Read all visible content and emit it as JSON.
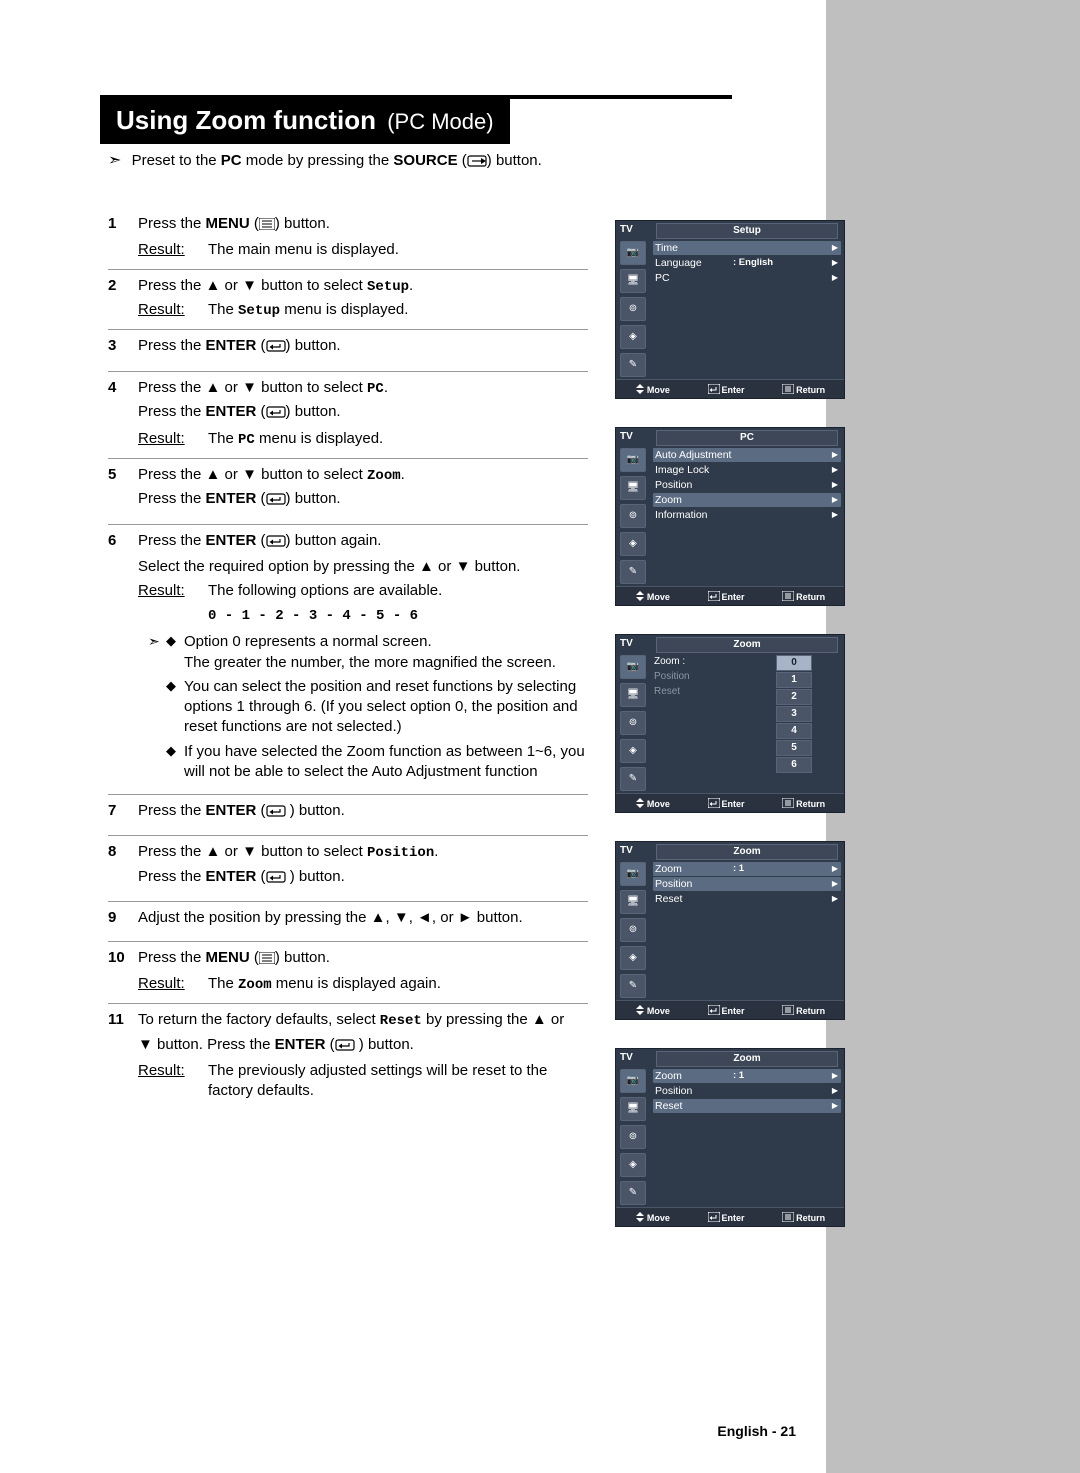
{
  "page": {
    "title_main": "Using Zoom function",
    "title_sub": "(PC Mode)",
    "footer": "English - 21"
  },
  "preset": {
    "arrow": "➣",
    "pre": "Preset to the ",
    "bold1": "PC",
    "mid": " mode by pressing the ",
    "bold2": "SOURCE",
    "post": " button."
  },
  "result_label": "Result:",
  "steps": [
    {
      "n": "1",
      "lines": [
        {
          "t": "plain",
          "segs": [
            {
              "txt": "Press the "
            },
            {
              "b": "MENU"
            },
            {
              "txt": " ("
            },
            {
              "icon": "menu"
            },
            {
              "txt": ") button."
            }
          ]
        }
      ],
      "result": "The main menu is displayed."
    },
    {
      "n": "2",
      "lines": [
        {
          "t": "plain",
          "segs": [
            {
              "txt": "Press the "
            },
            {
              "tri": "▲"
            },
            {
              "txt": " or "
            },
            {
              "tri": "▼"
            },
            {
              "txt": " button to select "
            },
            {
              "mono": "Setup"
            },
            {
              "txt": "."
            }
          ]
        }
      ],
      "result_rich": [
        {
          "txt": "The "
        },
        {
          "mono": "Setup"
        },
        {
          "txt": " menu is displayed."
        }
      ]
    },
    {
      "n": "3",
      "lines": [
        {
          "t": "plain",
          "segs": [
            {
              "txt": "Press the "
            },
            {
              "b": "ENTER"
            },
            {
              "txt": " ("
            },
            {
              "icon": "enter"
            },
            {
              "txt": ") button."
            }
          ]
        }
      ]
    },
    {
      "n": "4",
      "lines": [
        {
          "t": "plain",
          "segs": [
            {
              "txt": "Press the "
            },
            {
              "tri": "▲"
            },
            {
              "txt": " or "
            },
            {
              "tri": "▼"
            },
            {
              "txt": " button to select "
            },
            {
              "mono": "PC"
            },
            {
              "txt": "."
            }
          ]
        },
        {
          "t": "plain",
          "segs": [
            {
              "txt": "Press the "
            },
            {
              "b": "ENTER"
            },
            {
              "txt": " ("
            },
            {
              "icon": "enter"
            },
            {
              "txt": ") button."
            }
          ]
        }
      ],
      "result_rich": [
        {
          "txt": "The "
        },
        {
          "mono": "PC"
        },
        {
          "txt": "  menu is displayed."
        }
      ]
    },
    {
      "n": "5",
      "lines": [
        {
          "t": "plain",
          "segs": [
            {
              "txt": "Press the "
            },
            {
              "tri": "▲"
            },
            {
              "txt": " or "
            },
            {
              "tri": "▼"
            },
            {
              "txt": " button to select "
            },
            {
              "mono": "Zoom"
            },
            {
              "txt": "."
            }
          ]
        },
        {
          "t": "plain",
          "segs": [
            {
              "txt": "Press the "
            },
            {
              "b": "ENTER"
            },
            {
              "txt": " ("
            },
            {
              "icon": "enter"
            },
            {
              "txt": ") button."
            }
          ]
        }
      ]
    },
    {
      "n": "6",
      "lines": [
        {
          "t": "plain",
          "segs": [
            {
              "txt": "Press the "
            },
            {
              "b": "ENTER"
            },
            {
              "txt": " ("
            },
            {
              "icon": "enter"
            },
            {
              "txt": ") button again."
            }
          ]
        },
        {
          "t": "plain",
          "segs": [
            {
              "txt": "Select the required option by pressing the "
            },
            {
              "tri": "▲"
            },
            {
              "txt": " or "
            },
            {
              "tri": "▼"
            },
            {
              "txt": " button."
            }
          ]
        }
      ],
      "result": "The following options are available.",
      "options": "0 - 1 - 2 - 3  - 4  - 5  - 6",
      "notes": [
        {
          "a": "➣",
          "d": "◆",
          "t": "Option 0 represents a normal screen.\nThe greater the number, the more magnified the screen."
        },
        {
          "a": "",
          "d": "◆",
          "t": "You can select the position and reset functions by selecting options 1 through 6. (If you select option 0, the position and reset functions are not selected.)"
        },
        {
          "a": "",
          "d": "◆",
          "t": "If you have selected the Zoom function as between 1~6, you will not be able to select the Auto Adjustment function"
        }
      ]
    },
    {
      "n": "7",
      "lines": [
        {
          "t": "plain",
          "segs": [
            {
              "txt": "Press the "
            },
            {
              "b": "ENTER"
            },
            {
              "txt": " ("
            },
            {
              "icon": "enter"
            },
            {
              "txt": " ) button."
            }
          ]
        }
      ]
    },
    {
      "n": "8",
      "lines": [
        {
          "t": "plain",
          "segs": [
            {
              "txt": "Press the "
            },
            {
              "tri": "▲"
            },
            {
              "txt": " or "
            },
            {
              "tri": "▼"
            },
            {
              "txt": " button to select "
            },
            {
              "mono": "Position"
            },
            {
              "txt": "."
            }
          ]
        },
        {
          "t": "plain",
          "segs": [
            {
              "txt": "Press the "
            },
            {
              "b": "ENTER"
            },
            {
              "txt": " ("
            },
            {
              "icon": "enter"
            },
            {
              "txt": " ) button."
            }
          ]
        }
      ]
    },
    {
      "n": "9",
      "lines": [
        {
          "t": "plain",
          "segs": [
            {
              "txt": "Adjust the position by pressing the "
            },
            {
              "tri": "▲"
            },
            {
              "txt": ", "
            },
            {
              "tri": "▼"
            },
            {
              "txt": ", "
            },
            {
              "tri": "◄"
            },
            {
              "txt": ", or "
            },
            {
              "tri": "►"
            },
            {
              "txt": " button."
            }
          ]
        }
      ]
    },
    {
      "n": "10",
      "lines": [
        {
          "t": "plain",
          "segs": [
            {
              "txt": "Press the "
            },
            {
              "b": "MENU"
            },
            {
              "txt": " ("
            },
            {
              "icon": "menu"
            },
            {
              "txt": ") button."
            }
          ]
        }
      ],
      "result_rich": [
        {
          "txt": "The "
        },
        {
          "mono": "Zoom"
        },
        {
          "txt": "  menu is displayed again."
        }
      ]
    },
    {
      "n": "11",
      "lines": [
        {
          "t": "plain",
          "segs": [
            {
              "txt": "To return the factory defaults, select "
            },
            {
              "mono": "Reset"
            },
            {
              "txt": " by pressing the "
            },
            {
              "tri": "▲"
            },
            {
              "txt": " or"
            }
          ]
        },
        {
          "t": "plain",
          "segs": [
            {
              "tri": "▼"
            },
            {
              "txt": " button. Press the "
            },
            {
              "b": "ENTER"
            },
            {
              "txt": " ("
            },
            {
              "icon": "enter"
            },
            {
              "txt": " ) button."
            }
          ]
        }
      ],
      "result": "The previously adjusted settings will be reset to the factory defaults."
    }
  ],
  "osd_footer": {
    "move": "Move",
    "enter": "Enter",
    "return": "Return",
    "tv": "TV"
  },
  "osd": [
    {
      "title": "Setup",
      "rows": [
        {
          "k": "Time",
          "sel": true,
          "caret": true
        },
        {
          "k": "Language",
          "v": ": English",
          "caret": true
        },
        {
          "k": "PC",
          "caret": true
        }
      ]
    },
    {
      "title": "PC",
      "rows": [
        {
          "k": "Auto Adjustment",
          "sel": true,
          "caret": true
        },
        {
          "k": "Image Lock",
          "caret": true
        },
        {
          "k": "Position",
          "caret": true
        },
        {
          "k": "Zoom",
          "sel2": true,
          "caret": true
        },
        {
          "k": "Information",
          "caret": true
        }
      ]
    },
    {
      "title": "Zoom",
      "zoom_list": true,
      "left": [
        {
          "k": "Zoom",
          "v": ":"
        },
        {
          "k": "Position",
          "dim": true
        },
        {
          "k": "Reset",
          "dim": true
        }
      ],
      "vals": [
        "0",
        "1",
        "2",
        "3",
        "4",
        "5",
        "6"
      ],
      "sel_val": "0"
    },
    {
      "title": "Zoom",
      "rows": [
        {
          "k": "Zoom",
          "v": ": 1",
          "sel": true,
          "caret": true
        },
        {
          "k": "Position",
          "sel2": true,
          "caret": true
        },
        {
          "k": "Reset",
          "caret": true
        }
      ]
    },
    {
      "title": "Zoom",
      "rows": [
        {
          "k": "Zoom",
          "v": ": 1",
          "sel": true,
          "caret": true
        },
        {
          "k": "Position",
          "caret": true
        },
        {
          "k": "Reset",
          "sel2": true,
          "caret": true
        }
      ]
    }
  ]
}
